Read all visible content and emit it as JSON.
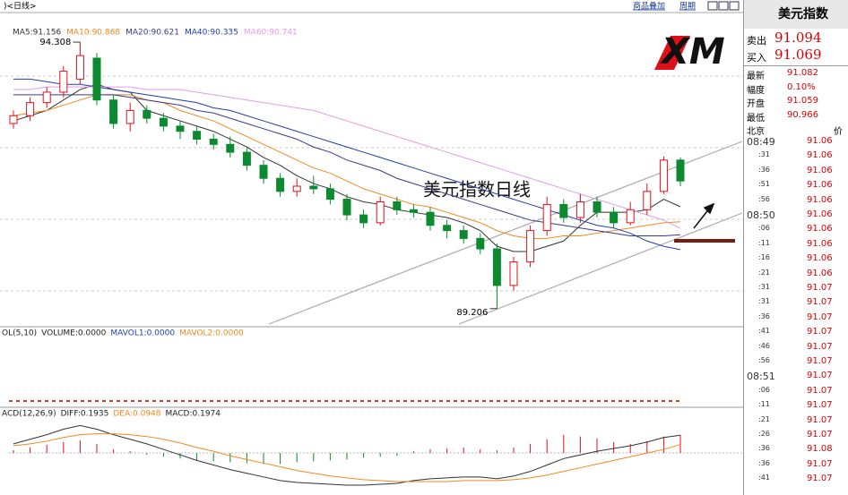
{
  "toolbar": {
    "title": ")<日线>",
    "overlay": "商品叠加",
    "period": "周期"
  },
  "chart_data": {
    "type": "candlestick",
    "annotation": "美元指数日线",
    "logo": "XM",
    "ylim": [
      88.86,
      94.6
    ],
    "open": [
      92.75,
      92.9,
      93.15,
      93.35,
      93.6,
      94.0,
      93.2,
      92.75,
      93.0,
      92.85,
      92.7,
      92.6,
      92.45,
      92.35,
      92.2,
      91.95,
      91.7,
      91.45,
      91.55,
      91.5,
      91.3,
      91.0,
      90.85,
      91.25,
      91.1,
      91.05,
      90.8,
      90.7,
      90.55,
      90.35,
      89.65,
      90.1,
      90.7,
      91.2,
      90.95,
      91.25,
      91.05,
      90.85,
      91.1,
      91.45,
      92.05
    ],
    "high": [
      93.0,
      93.25,
      93.45,
      93.85,
      94.308,
      94.1,
      93.3,
      93.15,
      93.1,
      92.95,
      92.8,
      92.7,
      92.55,
      92.5,
      92.3,
      92.05,
      91.8,
      91.7,
      91.75,
      91.6,
      91.4,
      91.1,
      91.35,
      91.35,
      91.2,
      91.15,
      90.9,
      90.8,
      90.65,
      90.45,
      90.2,
      90.8,
      91.35,
      91.3,
      91.4,
      91.35,
      91.15,
      91.25,
      91.6,
      92.12,
      92.1
    ],
    "low": [
      92.65,
      92.8,
      93.05,
      93.25,
      93.5,
      93.1,
      92.65,
      92.6,
      92.75,
      92.6,
      92.45,
      92.35,
      92.25,
      92.1,
      91.85,
      91.6,
      91.35,
      91.35,
      91.4,
      91.2,
      90.9,
      90.75,
      90.8,
      91.0,
      90.95,
      90.7,
      90.55,
      90.45,
      90.25,
      89.206,
      89.55,
      90.0,
      90.6,
      90.85,
      90.85,
      90.95,
      90.75,
      90.8,
      91.0,
      91.4,
      91.55
    ],
    "close": [
      92.9,
      93.15,
      93.35,
      93.75,
      94.05,
      93.2,
      92.75,
      93.0,
      92.85,
      92.7,
      92.6,
      92.45,
      92.35,
      92.2,
      91.95,
      91.7,
      91.45,
      91.55,
      91.5,
      91.3,
      91.0,
      90.85,
      91.25,
      91.1,
      91.05,
      90.8,
      90.7,
      90.55,
      90.35,
      89.65,
      90.1,
      90.7,
      91.2,
      90.95,
      91.25,
      91.05,
      90.85,
      91.1,
      91.45,
      92.05,
      91.65
    ],
    "up_color": "#e0101a",
    "down_color": "#0b8a2f",
    "series": [
      {
        "name": "MA5",
        "legend_label": "MA5:91.156",
        "color": "#333333",
        "values": [
          92.8,
          92.9,
          93.0,
          93.2,
          93.4,
          93.5,
          93.4,
          93.35,
          93.0,
          92.9,
          92.8,
          92.7,
          92.6,
          92.45,
          92.3,
          92.1,
          91.95,
          91.75,
          91.6,
          91.5,
          91.35,
          91.25,
          91.2,
          91.1,
          91.05,
          91.0,
          90.95,
          90.85,
          90.7,
          90.4,
          90.3,
          90.3,
          90.4,
          90.5,
          90.8,
          91.05,
          91.05,
          91.05,
          91.1,
          91.3,
          91.156
        ]
      },
      {
        "name": "MA10",
        "legend_label": "MA10:90.868",
        "color": "#f08a1c",
        "values": [
          92.9,
          92.95,
          93.0,
          93.1,
          93.2,
          93.3,
          93.3,
          93.3,
          93.2,
          93.15,
          93.0,
          92.9,
          92.8,
          92.65,
          92.5,
          92.35,
          92.2,
          92.05,
          91.9,
          91.8,
          91.65,
          91.5,
          91.4,
          91.3,
          91.2,
          91.15,
          91.05,
          90.95,
          90.85,
          90.7,
          90.6,
          90.55,
          90.55,
          90.6,
          90.6,
          90.65,
          90.7,
          90.75,
          90.8,
          90.85,
          90.868
        ]
      },
      {
        "name": "MA20",
        "legend_label": "MA20:90.621",
        "color": "#3a3a8c",
        "values": [
          93.3,
          93.3,
          93.3,
          93.3,
          93.3,
          93.3,
          93.3,
          93.25,
          93.2,
          93.15,
          93.1,
          93.0,
          92.95,
          92.85,
          92.75,
          92.65,
          92.55,
          92.45,
          92.3,
          92.2,
          92.05,
          91.95,
          91.85,
          91.7,
          91.6,
          91.5,
          91.4,
          91.3,
          91.2,
          91.1,
          91.0,
          90.9,
          90.85,
          90.8,
          90.75,
          90.7,
          90.65,
          90.6,
          90.6,
          90.6,
          90.621
        ]
      },
      {
        "name": "MA40",
        "legend_label": "MA40:90.335",
        "color": "#1f3fa8",
        "values": [
          93.6,
          93.6,
          93.55,
          93.5,
          93.5,
          93.45,
          93.4,
          93.35,
          93.3,
          93.25,
          93.2,
          93.15,
          93.05,
          93.0,
          92.9,
          92.8,
          92.7,
          92.6,
          92.5,
          92.4,
          92.3,
          92.2,
          92.1,
          92.0,
          91.9,
          91.8,
          91.7,
          91.6,
          91.5,
          91.4,
          91.3,
          91.2,
          91.1,
          91.0,
          90.9,
          90.8,
          90.75,
          90.65,
          90.5,
          90.4,
          90.335
        ]
      },
      {
        "name": "MA60",
        "legend_label": "MA60:90.741",
        "color": "#e59be8",
        "values": [
          93.4,
          93.4,
          93.45,
          93.45,
          93.45,
          93.45,
          93.45,
          93.45,
          93.4,
          93.4,
          93.4,
          93.35,
          93.3,
          93.25,
          93.2,
          93.15,
          93.1,
          93.05,
          93.0,
          92.9,
          92.8,
          92.7,
          92.6,
          92.5,
          92.4,
          92.3,
          92.2,
          92.1,
          92.0,
          91.9,
          91.8,
          91.7,
          91.6,
          91.5,
          91.4,
          91.3,
          91.2,
          91.1,
          91.0,
          90.9,
          90.741
        ]
      }
    ],
    "volume_header": [
      "OL(5,10)",
      "VOLUME:0.0000",
      "MAVOL1:0.0000",
      "MAVOL2:0.0000"
    ],
    "macd_header": [
      "ACD(12,26,9)",
      "DIFF:0.1935",
      "DEA:0.0948",
      "MACD:0.1974"
    ],
    "macd_ylim": [
      -0.33,
      0.45
    ],
    "macd": [
      0.03,
      0.06,
      0.09,
      0.12,
      0.14,
      0.1,
      0.04,
      0.02,
      -0.02,
      -0.04,
      -0.06,
      -0.08,
      -0.09,
      -0.1,
      -0.11,
      -0.12,
      -0.12,
      -0.1,
      -0.09,
      -0.08,
      -0.07,
      -0.05,
      -0.04,
      -0.03,
      0.02,
      0.04,
      0.05,
      0.06,
      0.04,
      0.03,
      0.06,
      0.1,
      0.15,
      0.2,
      0.18,
      0.16,
      0.12,
      0.1,
      0.13,
      0.18,
      0.1974
    ],
    "diff": [
      0.1,
      0.15,
      0.2,
      0.26,
      0.3,
      0.26,
      0.2,
      0.15,
      0.1,
      0.04,
      -0.02,
      -0.08,
      -0.13,
      -0.18,
      -0.22,
      -0.26,
      -0.3,
      -0.32,
      -0.33,
      -0.34,
      -0.35,
      -0.35,
      -0.34,
      -0.33,
      -0.3,
      -0.28,
      -0.27,
      -0.26,
      -0.26,
      -0.28,
      -0.25,
      -0.2,
      -0.13,
      -0.06,
      -0.02,
      0.02,
      0.05,
      0.08,
      0.12,
      0.17,
      0.1935
    ],
    "dea": [
      0.08,
      0.1,
      0.13,
      0.17,
      0.2,
      0.21,
      0.21,
      0.2,
      0.18,
      0.15,
      0.11,
      0.06,
      0.02,
      -0.03,
      -0.07,
      -0.11,
      -0.15,
      -0.19,
      -0.22,
      -0.25,
      -0.27,
      -0.29,
      -0.3,
      -0.31,
      -0.31,
      -0.31,
      -0.31,
      -0.3,
      -0.3,
      -0.3,
      -0.29,
      -0.27,
      -0.24,
      -0.2,
      -0.16,
      -0.12,
      -0.08,
      -0.04,
      0.0,
      0.04,
      0.0948
    ]
  },
  "quote_panel": {
    "title": "美元指数",
    "sell_label": "卖出",
    "sell": 91.094,
    "buy_label": "买入",
    "buy": 91.069,
    "stats": [
      [
        "最新",
        91.082
      ],
      [
        "幅度",
        "0.10%"
      ],
      [
        "开盘",
        91.059
      ],
      [
        "最低",
        90.966
      ]
    ],
    "time_header": "北京",
    "price_header": "价",
    "ticks": [
      [
        "08:49",
        91.06
      ],
      [
        ":31",
        91.06
      ],
      [
        ":36",
        91.06
      ],
      [
        ":51",
        91.06
      ],
      [
        ":56",
        91.06
      ],
      [
        "08:50",
        91.06
      ],
      [
        ":06",
        91.06
      ],
      [
        ":11",
        91.06
      ],
      [
        ":16",
        91.06
      ],
      [
        ":21",
        91.06
      ],
      [
        ":31",
        91.07
      ],
      [
        ":31",
        91.07
      ],
      [
        ":36",
        91.07
      ],
      [
        ":41",
        91.07
      ],
      [
        ":46",
        91.07
      ],
      [
        ":56",
        91.07
      ],
      [
        "08:51",
        91.07
      ],
      [
        ":06",
        91.07
      ],
      [
        ":11",
        91.07
      ],
      [
        ":21",
        91.07
      ],
      [
        ":26",
        91.07
      ],
      [
        ":36",
        91.08
      ],
      [
        ":36",
        91.07
      ],
      [
        ":41",
        91.07
      ]
    ]
  }
}
